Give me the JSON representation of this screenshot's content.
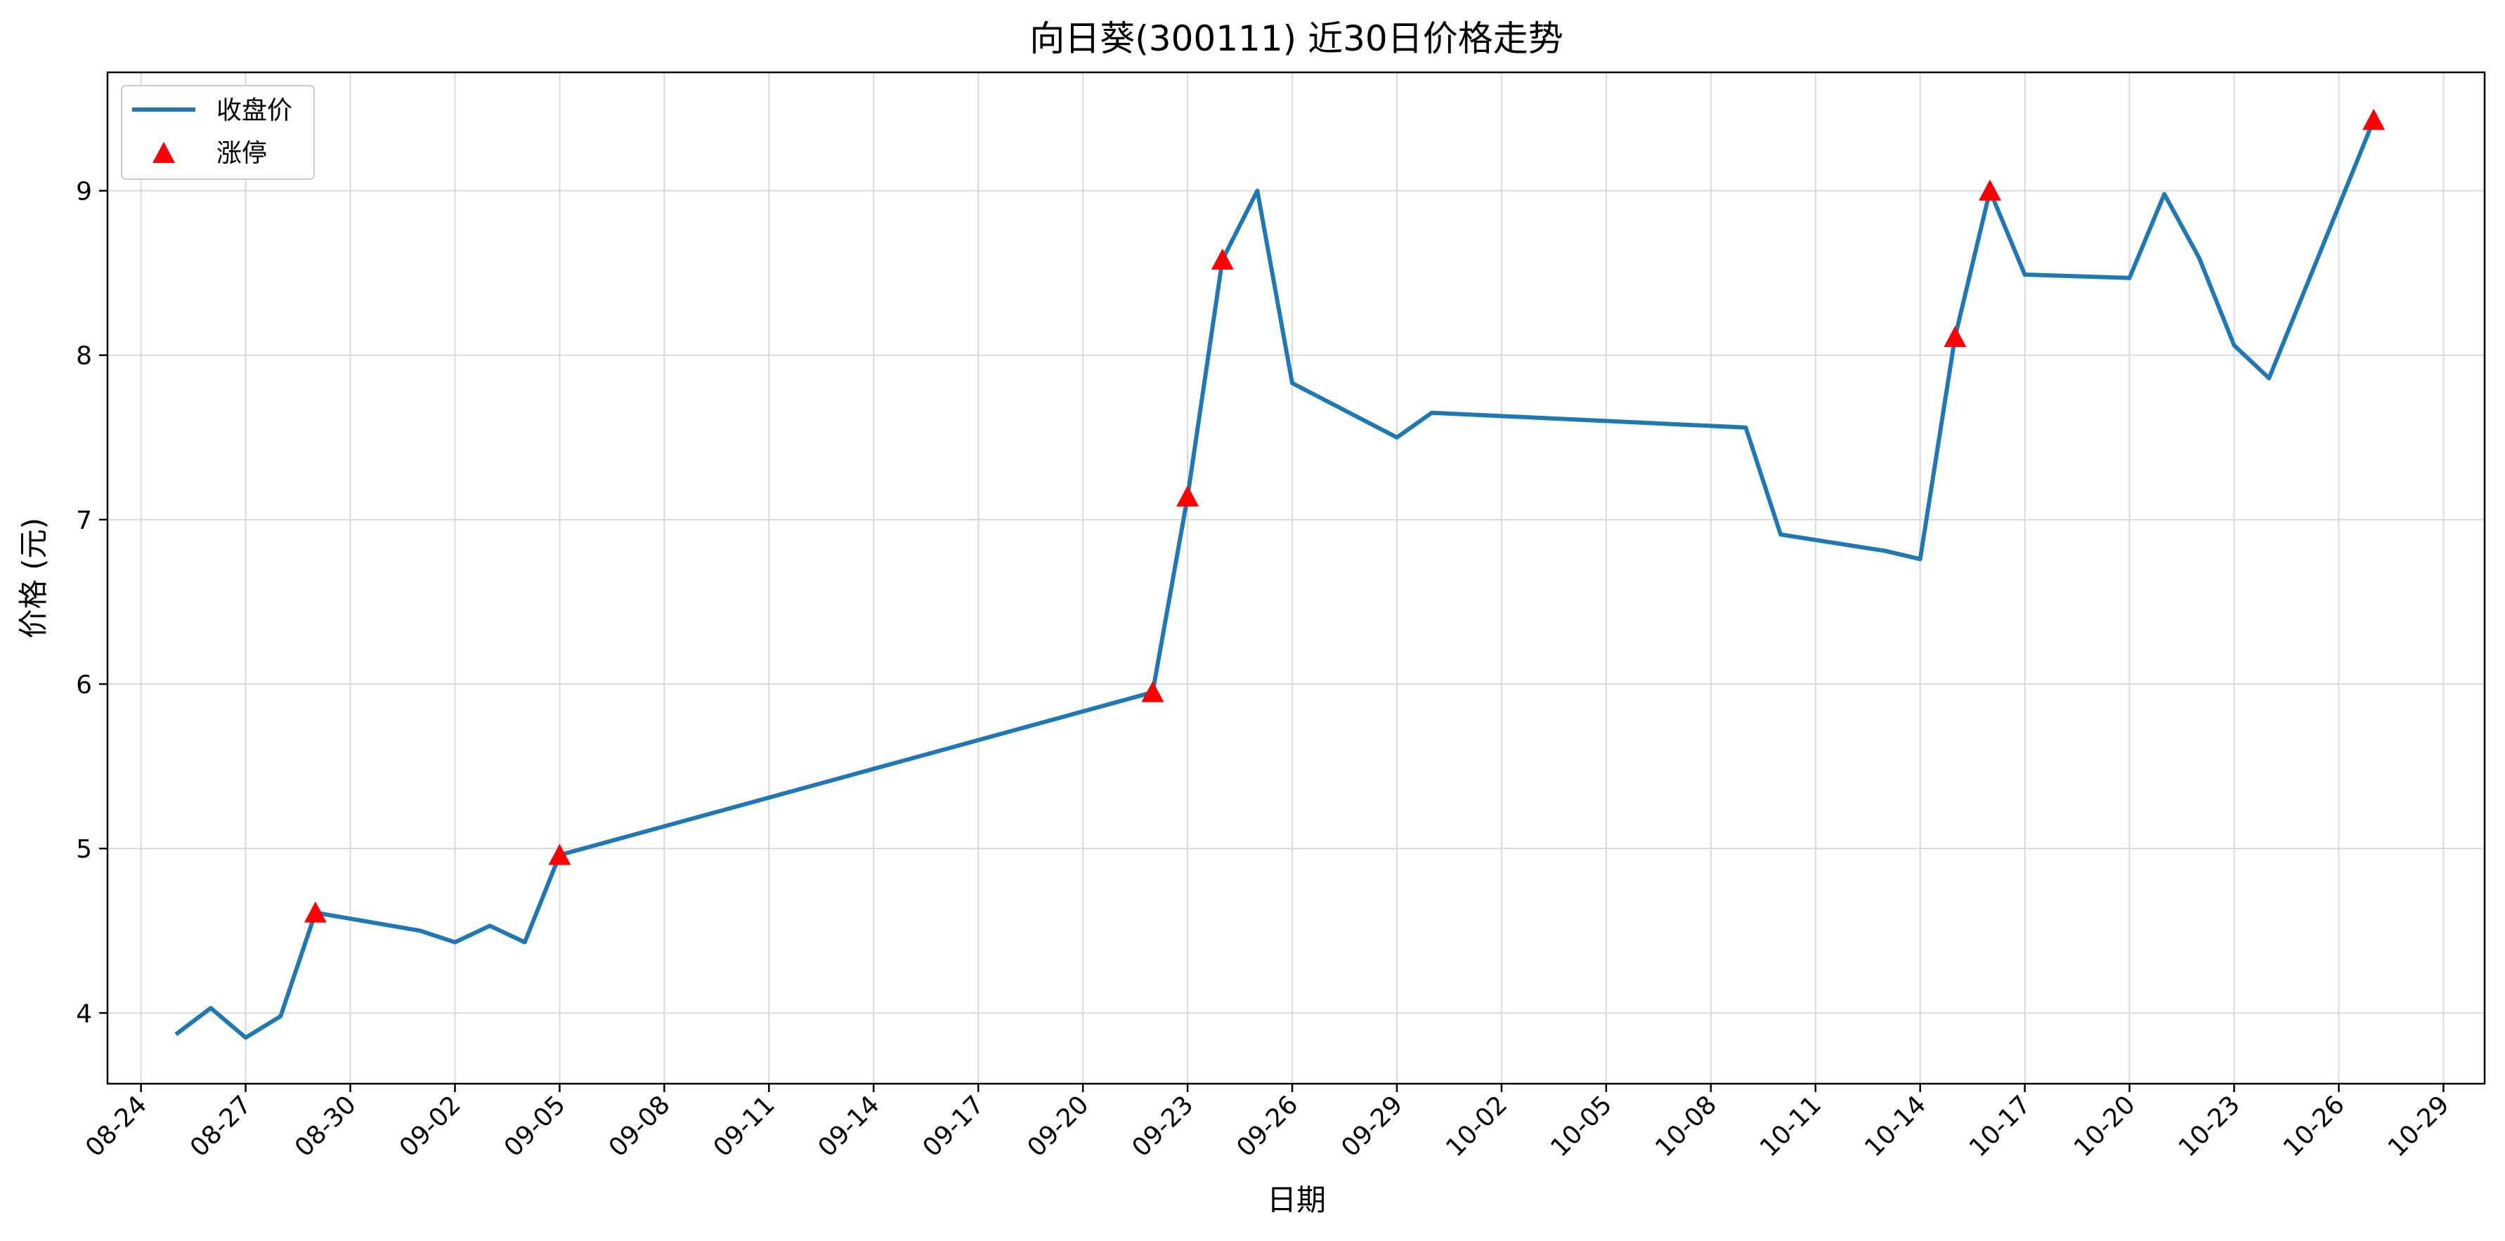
{
  "chart_data": {
    "type": "line",
    "title": "向日葵(300111) 近30日价格走势",
    "xlabel": "日期",
    "ylabel": "价格 (元)",
    "x_tick_labels": [
      "08-24",
      "08-27",
      "08-30",
      "09-02",
      "09-05",
      "09-08",
      "09-11",
      "09-14",
      "09-17",
      "09-20",
      "09-23",
      "09-26",
      "09-29",
      "10-02",
      "10-05",
      "10-08",
      "10-11",
      "10-14",
      "10-17",
      "10-20",
      "10-23",
      "10-26",
      "10-29"
    ],
    "y_ticks": [
      4,
      5,
      6,
      7,
      8,
      9
    ],
    "xlim": [
      "08-23",
      "10-30"
    ],
    "ylim": [
      3.57,
      9.72
    ],
    "grid": true,
    "legend_position": "top-left",
    "series": [
      {
        "name": "收盘价",
        "kind": "line",
        "color": "#1f77b4",
        "x": [
          "08-25",
          "08-26",
          "08-27",
          "08-28",
          "08-29",
          "09-01",
          "09-02",
          "09-03",
          "09-04",
          "09-05",
          "09-22",
          "09-23",
          "09-24",
          "09-25",
          "09-26",
          "09-29",
          "09-30",
          "10-09",
          "10-10",
          "10-13",
          "10-14",
          "10-15",
          "10-16",
          "10-17",
          "10-20",
          "10-21",
          "10-22",
          "10-23",
          "10-24",
          "10-27"
        ],
        "values": [
          3.87,
          4.03,
          3.85,
          3.98,
          4.61,
          4.5,
          4.43,
          4.53,
          4.43,
          4.96,
          5.95,
          7.14,
          8.58,
          9.0,
          7.83,
          7.5,
          7.65,
          7.56,
          6.91,
          6.81,
          6.76,
          8.11,
          9.0,
          8.49,
          8.47,
          8.98,
          8.59,
          8.06,
          7.86,
          9.43
        ]
      },
      {
        "name": "涨停",
        "kind": "marker",
        "color": "#ff0000",
        "x": [
          "08-29",
          "09-05",
          "09-22",
          "09-23",
          "09-24",
          "10-15",
          "10-16",
          "10-27"
        ],
        "values": [
          4.61,
          4.96,
          5.95,
          7.14,
          8.58,
          8.11,
          9.0,
          9.43
        ]
      }
    ]
  }
}
